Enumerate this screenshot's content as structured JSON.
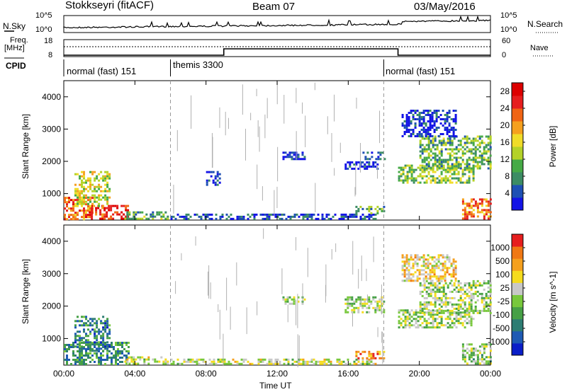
{
  "header": {
    "station": "Stokkseyri (fitACF)",
    "beam": "Beam 07",
    "date": "03/May/2016"
  },
  "panels": {
    "noise": {
      "left_label": "N.Sky",
      "right_label": "N.Search",
      "left_ticks": [
        "10^5",
        "10^0"
      ],
      "right_ticks": [
        "10^5",
        "10^0"
      ]
    },
    "freq": {
      "left_label_1": "Freq.",
      "left_label_2": "[MHz]",
      "right_label": "Nave",
      "left_ticks": [
        "18",
        "8"
      ],
      "right_ticks": [
        "60",
        "0"
      ]
    },
    "cpid": {
      "label": "CPID",
      "modes": [
        {
          "text": "normal (fast) 151",
          "start_h": 0
        },
        {
          "text": "themis 3300",
          "start_h": 6
        },
        {
          "text": "normal (fast) 151",
          "start_h": 18
        }
      ]
    }
  },
  "chart_data": [
    {
      "type": "heatmap",
      "title": "",
      "xlabel": "Time UT",
      "ylabel": "Slant Range [km]",
      "x_ticks": [
        "00:00",
        "04:00",
        "08:00",
        "12:00",
        "16:00",
        "20:00",
        "00:00"
      ],
      "xlim_hours": [
        0,
        24
      ],
      "y_ticks": [
        1000,
        2000,
        3000,
        4000
      ],
      "ylim": [
        180,
        4500
      ],
      "colorbar": {
        "label": "Power [dB]",
        "ticks": [
          "4",
          "8",
          "12",
          "16",
          "20",
          "24",
          "28"
        ],
        "range": [
          0,
          30
        ],
        "colors": [
          "#1414e6",
          "#1e50b4",
          "#3c8c64",
          "#46aa46",
          "#b4d228",
          "#f0dc28",
          "#f5a01e",
          "#f06414",
          "#e61e1e",
          "#dc0000"
        ]
      },
      "regions": [
        {
          "t0": 0.0,
          "t1": 1.6,
          "r0": 200,
          "r1": 900,
          "level": 0.75
        },
        {
          "t0": 1.4,
          "t1": 3.6,
          "r0": 200,
          "r1": 650,
          "level": 0.85
        },
        {
          "t0": 0.6,
          "t1": 2.6,
          "r0": 600,
          "r1": 1700,
          "level": 0.5
        },
        {
          "t0": 3.4,
          "t1": 6.0,
          "r0": 200,
          "r1": 450,
          "level": 0.35
        },
        {
          "t0": 6.0,
          "t1": 17.5,
          "r0": 200,
          "r1": 380,
          "level": 0.12
        },
        {
          "t0": 8.0,
          "t1": 8.8,
          "r0": 1300,
          "r1": 1700,
          "level": 0.08
        },
        {
          "t0": 12.3,
          "t1": 13.6,
          "r0": 2100,
          "r1": 2300,
          "level": 0.08
        },
        {
          "t0": 15.8,
          "t1": 17.6,
          "r0": 1800,
          "r1": 2000,
          "level": 0.06
        },
        {
          "t0": 16.8,
          "t1": 18.0,
          "r0": 2100,
          "r1": 2300,
          "level": 0.12
        },
        {
          "t0": 16.4,
          "t1": 18.0,
          "r0": 420,
          "r1": 620,
          "level": 0.3
        },
        {
          "t0": 18.8,
          "t1": 23.0,
          "r0": 1350,
          "r1": 1900,
          "level": 0.42
        },
        {
          "t0": 20.0,
          "t1": 24.0,
          "r0": 1800,
          "r1": 2800,
          "level": 0.35
        },
        {
          "t0": 19.0,
          "t1": 22.0,
          "r0": 2800,
          "r1": 3600,
          "level": 0.06
        },
        {
          "t0": 22.4,
          "t1": 24.0,
          "r0": 200,
          "r1": 850,
          "level": 0.72
        }
      ]
    },
    {
      "type": "heatmap",
      "title": "",
      "xlabel": "Time UT",
      "ylabel": "Slant Range [km]",
      "x_ticks": [
        "00:00",
        "04:00",
        "08:00",
        "12:00",
        "16:00",
        "20:00",
        "00:00"
      ],
      "xlim_hours": [
        0,
        24
      ],
      "y_ticks": [
        1000,
        2000,
        3000,
        4000
      ],
      "ylim": [
        180,
        4500
      ],
      "colorbar": {
        "label": "Velocity [m s^-1]",
        "ticks": [
          "1000",
          "500",
          "100",
          "25",
          "-25",
          "-100",
          "-500",
          "-1000"
        ],
        "range": [
          -1000,
          1000
        ],
        "colors": [
          "#0a1ec8",
          "#1e5ab4",
          "#2d7d73",
          "#46a046",
          "#78c83c",
          "#c8c8c8",
          "#f5dc1e",
          "#f5a01e",
          "#f07814",
          "#e61e1e"
        ]
      },
      "regions": [
        {
          "t0": 0.0,
          "t1": 3.6,
          "r0": 200,
          "r1": 900,
          "level": 0.3
        },
        {
          "t0": 0.6,
          "t1": 2.6,
          "r0": 600,
          "r1": 1700,
          "level": 0.25
        },
        {
          "t0": 3.4,
          "t1": 6.0,
          "r0": 200,
          "r1": 450,
          "level": 0.55
        },
        {
          "t0": 6.0,
          "t1": 17.5,
          "r0": 200,
          "r1": 380,
          "level": 0.55
        },
        {
          "t0": 12.3,
          "t1": 13.6,
          "r0": 2100,
          "r1": 2300,
          "level": 0.5
        },
        {
          "t0": 15.8,
          "t1": 18.0,
          "r0": 1800,
          "r1": 2300,
          "level": 0.5
        },
        {
          "t0": 16.4,
          "t1": 18.0,
          "r0": 420,
          "r1": 620,
          "level": 0.8
        },
        {
          "t0": 18.8,
          "t1": 23.0,
          "r0": 1350,
          "r1": 1900,
          "level": 0.5
        },
        {
          "t0": 20.0,
          "t1": 24.0,
          "r0": 1800,
          "r1": 2800,
          "level": 0.5
        },
        {
          "t0": 19.0,
          "t1": 22.0,
          "r0": 2800,
          "r1": 3600,
          "level": 0.65
        },
        {
          "t0": 22.4,
          "t1": 24.0,
          "r0": 200,
          "r1": 850,
          "level": 0.45
        }
      ]
    }
  ]
}
